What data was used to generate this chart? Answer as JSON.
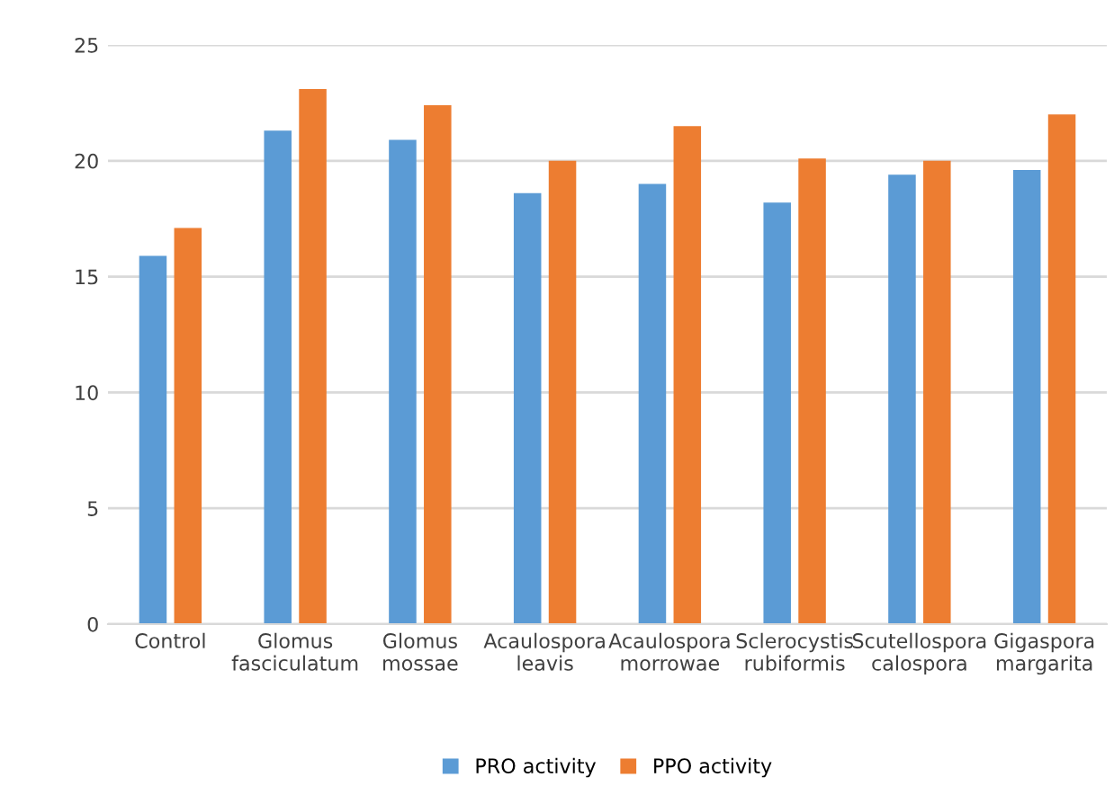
{
  "chart_data": {
    "type": "bar",
    "categories": [
      "Control",
      "Glomus\nfasciculatum",
      "Glomus\nmossae",
      "Acaulospora\nleavis",
      "Acaulospora\nmorrowae",
      "Sclerocystis\nrubiformis",
      "Scutellospora\ncalospora",
      "Gigaspora\nmargarita"
    ],
    "series": [
      {
        "name": "PRO activity",
        "color": "#5b9bd5",
        "values": [
          15.9,
          21.3,
          20.9,
          18.6,
          19.0,
          18.2,
          19.4,
          19.6
        ]
      },
      {
        "name": "PPO activity",
        "color": "#ed7d31",
        "values": [
          17.1,
          23.1,
          22.4,
          20.0,
          21.5,
          20.1,
          20.0,
          22.0
        ]
      }
    ],
    "ylim": [
      0,
      25
    ],
    "yticks": [
      0,
      5,
      10,
      15,
      20,
      25
    ],
    "grid": "y",
    "legend": "bottom"
  }
}
